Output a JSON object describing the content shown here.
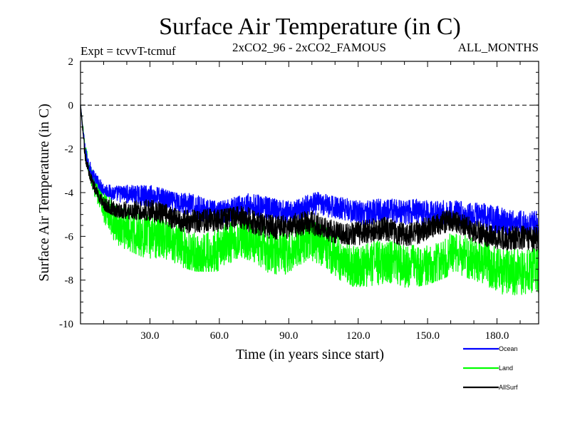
{
  "chart_data": {
    "type": "line",
    "title": "Surface Air Temperature (in C)",
    "subtitle_left": "Expt = tcvvT-tcmuf",
    "subtitle_center": "2xCO2_96 - 2xCO2_FAMOUS",
    "subtitle_right": "ALL_MONTHS",
    "xlabel": "Time (in years since start)",
    "ylabel": "Surface Air Temperature (in C)",
    "xlim": [
      0,
      198
    ],
    "ylim": [
      -10,
      2
    ],
    "x_ticks": [
      30,
      60,
      90,
      120,
      150,
      180
    ],
    "x_tick_labels": [
      "30.0",
      "60.0",
      "90.0",
      "120.0",
      "150.0",
      "180.0"
    ],
    "y_ticks": [
      2,
      0,
      -2,
      -4,
      -6,
      -8,
      -10
    ],
    "y_tick_labels": [
      "2",
      "0",
      "-2",
      "-4",
      "-6",
      "-8",
      "-10"
    ],
    "reference_line": {
      "y": 0,
      "style": "dashed"
    },
    "grid": false,
    "legend_position": "bottom-right",
    "series": [
      {
        "name": "Ocean",
        "color": "#0000ff",
        "envelope": {
          "x": [
            0,
            2,
            5,
            10,
            15,
            20,
            30,
            40,
            50,
            60,
            70,
            80,
            90,
            100,
            110,
            120,
            130,
            140,
            150,
            160,
            170,
            180,
            190,
            198
          ],
          "upper": [
            0,
            -1.8,
            -2.9,
            -3.6,
            -3.7,
            -3.6,
            -3.6,
            -4.0,
            -4.0,
            -4.1,
            -3.9,
            -4.0,
            -4.1,
            -3.9,
            -4.2,
            -4.3,
            -4.2,
            -4.4,
            -4.2,
            -4.0,
            -4.3,
            -4.4,
            -4.5,
            -4.6
          ],
          "lower": [
            0,
            -2.6,
            -3.6,
            -4.3,
            -4.6,
            -4.6,
            -4.8,
            -5.2,
            -5.3,
            -5.4,
            -5.2,
            -5.3,
            -5.4,
            -5.2,
            -5.5,
            -5.6,
            -5.6,
            -5.8,
            -5.6,
            -5.4,
            -5.8,
            -5.9,
            -6.0,
            -6.2
          ]
        }
      },
      {
        "name": "Land",
        "color": "#00ff00",
        "envelope": {
          "x": [
            0,
            2,
            5,
            10,
            15,
            20,
            30,
            40,
            50,
            60,
            70,
            80,
            90,
            100,
            110,
            120,
            130,
            140,
            150,
            160,
            170,
            180,
            190,
            198
          ],
          "upper": [
            0,
            -1.8,
            -3.0,
            -3.8,
            -4.2,
            -4.2,
            -4.6,
            -5.0,
            -5.3,
            -5.3,
            -5.1,
            -5.4,
            -5.6,
            -5.3,
            -5.8,
            -5.9,
            -5.9,
            -6.1,
            -5.8,
            -5.6,
            -6.1,
            -6.3,
            -6.4,
            -6.6
          ],
          "lower": [
            0,
            -2.8,
            -4.1,
            -5.6,
            -6.4,
            -6.6,
            -7.1,
            -7.3,
            -7.6,
            -7.6,
            -7.4,
            -7.9,
            -8.0,
            -7.7,
            -8.2,
            -8.3,
            -8.3,
            -8.4,
            -8.2,
            -7.8,
            -8.5,
            -8.8,
            -9.0,
            -9.2
          ]
        }
      },
      {
        "name": "AllSurf",
        "color": "#000000",
        "envelope": {
          "x": [
            0,
            2,
            5,
            10,
            15,
            20,
            30,
            40,
            50,
            60,
            70,
            80,
            90,
            100,
            110,
            120,
            130,
            140,
            150,
            160,
            170,
            180,
            190,
            198
          ],
          "upper": [
            0,
            -2.0,
            -3.2,
            -4.0,
            -4.2,
            -4.2,
            -4.3,
            -4.6,
            -4.7,
            -4.8,
            -4.6,
            -4.8,
            -4.9,
            -4.7,
            -5.0,
            -5.1,
            -5.1,
            -5.3,
            -5.0,
            -4.8,
            -5.2,
            -5.3,
            -5.4,
            -5.5
          ],
          "lower": [
            0,
            -2.6,
            -3.8,
            -4.8,
            -5.1,
            -5.2,
            -5.5,
            -5.8,
            -6.0,
            -6.1,
            -5.9,
            -6.1,
            -6.2,
            -6.0,
            -6.3,
            -6.4,
            -6.4,
            -6.6,
            -6.3,
            -6.1,
            -6.5,
            -6.6,
            -6.7,
            -6.9
          ]
        }
      }
    ]
  }
}
